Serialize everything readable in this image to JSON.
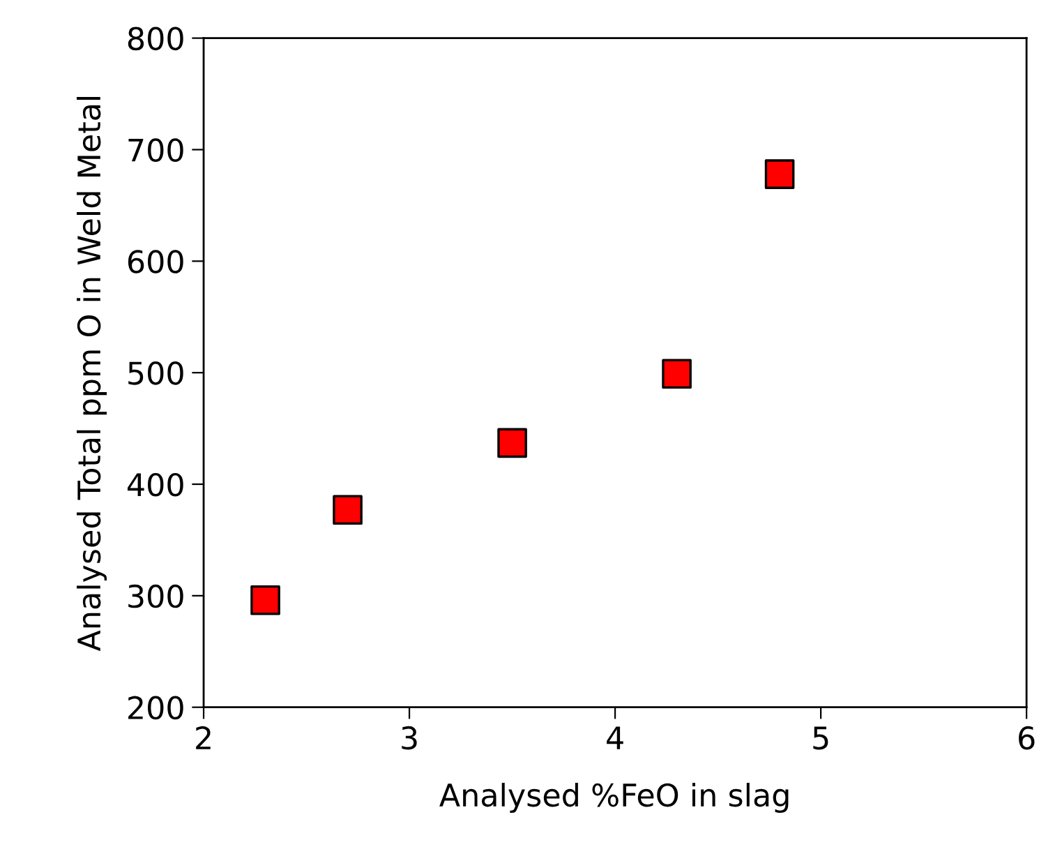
{
  "chart_data": {
    "type": "scatter",
    "xlabel": "Analysed %FeO in slag",
    "ylabel": "Analysed Total ppm O in Weld Metal",
    "series": [
      {
        "color": "#ff0000",
        "x": [
          2.3,
          2.7,
          3.5,
          4.3,
          4.8
        ],
        "values": [
          296,
          377,
          437,
          499,
          678
        ]
      }
    ],
    "xlim": [
      2,
      6
    ],
    "xticks": [
      2,
      3,
      4,
      5,
      6
    ],
    "ylim": [
      200,
      800
    ],
    "yticks": [
      200,
      300,
      400,
      500,
      600,
      700,
      800
    ],
    "marker": "square",
    "grid": false,
    "legend": false
  }
}
